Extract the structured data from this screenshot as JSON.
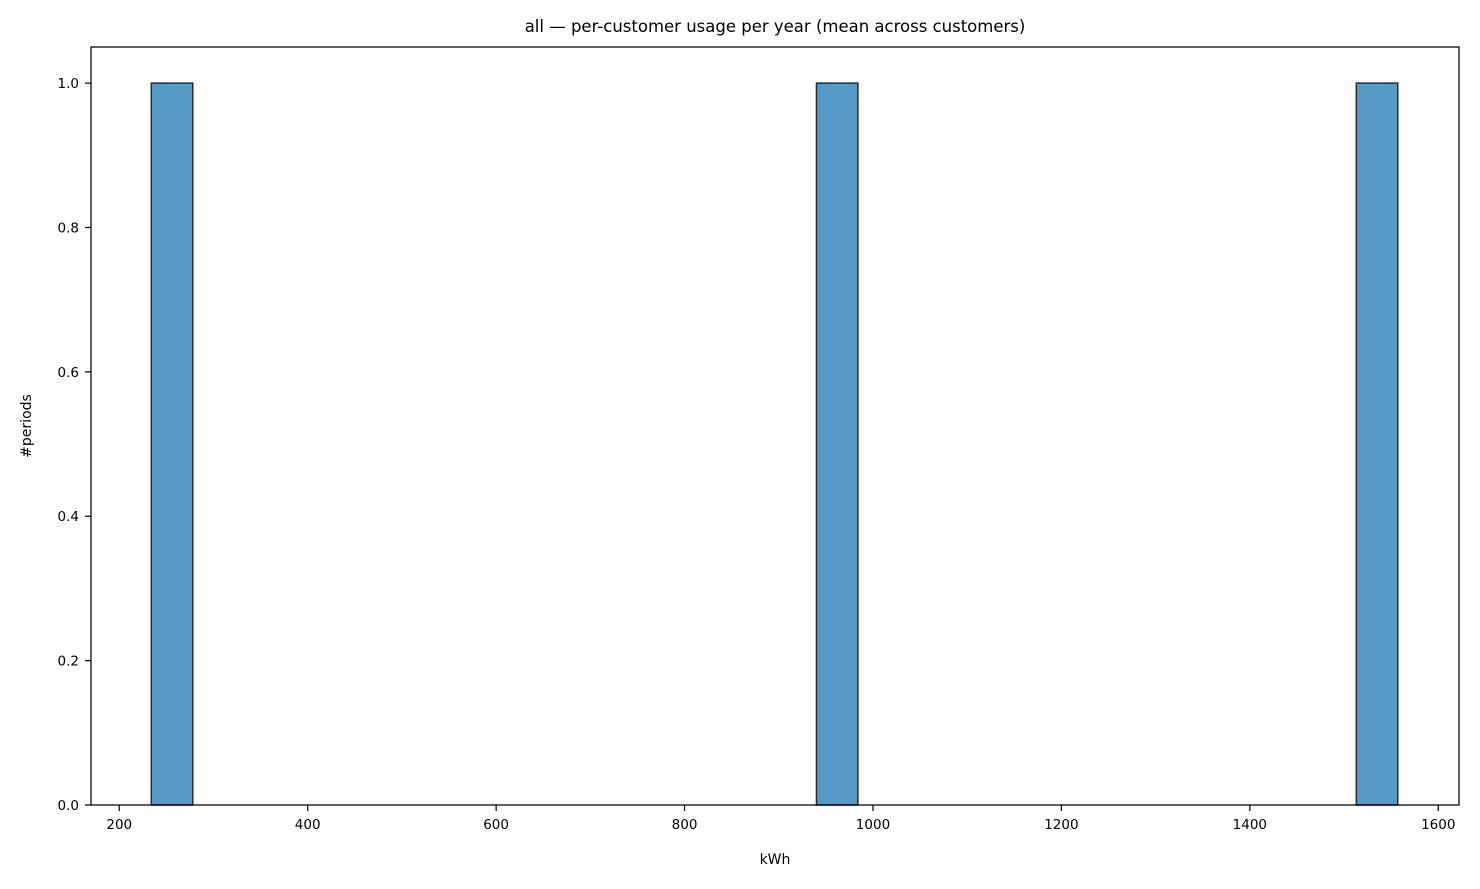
{
  "chart_data": {
    "type": "bar",
    "title": "all — per-customer usage per year (mean across customers)",
    "xlabel": "kWh",
    "ylabel": "#periods",
    "xlim": [
      170,
      1622
    ],
    "ylim": [
      0,
      1.05
    ],
    "xticks": [
      200,
      400,
      600,
      800,
      1000,
      1200,
      1400,
      1600
    ],
    "xtick_labels": [
      "200",
      "400",
      "600",
      "800",
      "1000",
      "1200",
      "1400",
      "1600"
    ],
    "yticks": [
      0,
      0.2,
      0.4,
      0.6,
      0.8,
      1.0
    ],
    "ytick_labels": [
      "0.0",
      "0.2",
      "0.4",
      "0.6",
      "0.8",
      "1.0"
    ],
    "bins": [
      {
        "start": 234,
        "end": 278,
        "count": 1
      },
      {
        "start": 940,
        "end": 984,
        "count": 1
      },
      {
        "start": 1513,
        "end": 1557,
        "count": 1
      }
    ],
    "grid": false,
    "legend": "none",
    "colors": {
      "bar_fill": "#5599c7",
      "bar_edge": "#2b2b2b"
    }
  }
}
